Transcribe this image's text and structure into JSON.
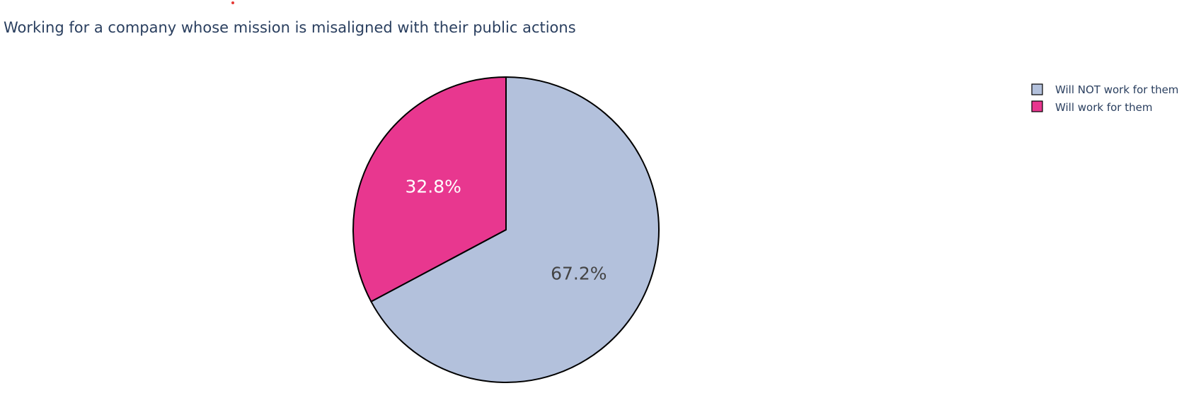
{
  "chart_data": {
    "type": "pie",
    "title": "Working for a company whose mission is misaligned with their public actions",
    "slices": [
      {
        "label": "Will NOT work for them",
        "value": 67.2,
        "display": "67.2%",
        "color": "#b3c1dc",
        "text_color": "#444444"
      },
      {
        "label": "Will work for them",
        "value": 32.8,
        "display": "32.8%",
        "color": "#e8378f",
        "text_color": "#ffffff"
      }
    ],
    "direction": "clockwise",
    "start": "12 o'clock",
    "legend": {
      "position": "top-right",
      "entries": [
        "Will NOT work for them",
        "Will work for them"
      ]
    },
    "outline_color": "#000000"
  }
}
